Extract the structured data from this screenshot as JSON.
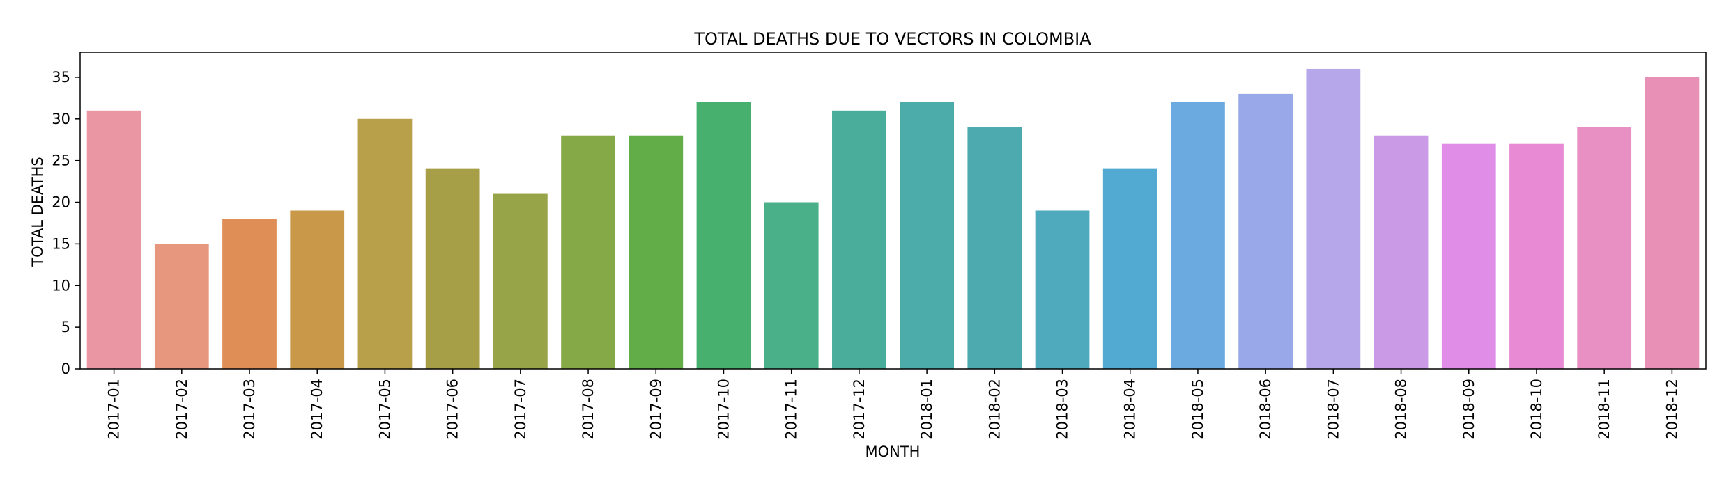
{
  "chart_data": {
    "type": "bar",
    "title": "TOTAL DEATHS DUE TO VECTORS IN COLOMBIA",
    "xlabel": "MONTH",
    "ylabel": "TOTAL DEATHS",
    "ylim": [
      0,
      38
    ],
    "yticks": [
      0,
      5,
      10,
      15,
      20,
      25,
      30,
      35
    ],
    "grid": false,
    "legend": "none",
    "categories": [
      "2017-01",
      "2017-02",
      "2017-03",
      "2017-04",
      "2017-05",
      "2017-06",
      "2017-07",
      "2017-08",
      "2017-09",
      "2017-10",
      "2017-11",
      "2017-12",
      "2018-01",
      "2018-02",
      "2018-03",
      "2018-04",
      "2018-05",
      "2018-06",
      "2018-07",
      "2018-08",
      "2018-09",
      "2018-10",
      "2018-11",
      "2018-12"
    ],
    "values": [
      31,
      15,
      18,
      19,
      30,
      24,
      21,
      28,
      28,
      32,
      20,
      31,
      32,
      29,
      19,
      24,
      32,
      33,
      36,
      28,
      27,
      27,
      29,
      35
    ],
    "colors": [
      "#ea96a3",
      "#e8977f",
      "#df8f56",
      "#c99849",
      "#b89f49",
      "#a69f47",
      "#97a448",
      "#86a947",
      "#62ad47",
      "#48b06f",
      "#4ab089",
      "#4aad9c",
      "#4cacaa",
      "#4dabb0",
      "#4eaabc",
      "#52a9d1",
      "#6aaae0",
      "#99a8e9",
      "#b6a6ea",
      "#ca9ae7",
      "#df8de7",
      "#e88ad4",
      "#e88fc4",
      "#e890b6"
    ]
  }
}
